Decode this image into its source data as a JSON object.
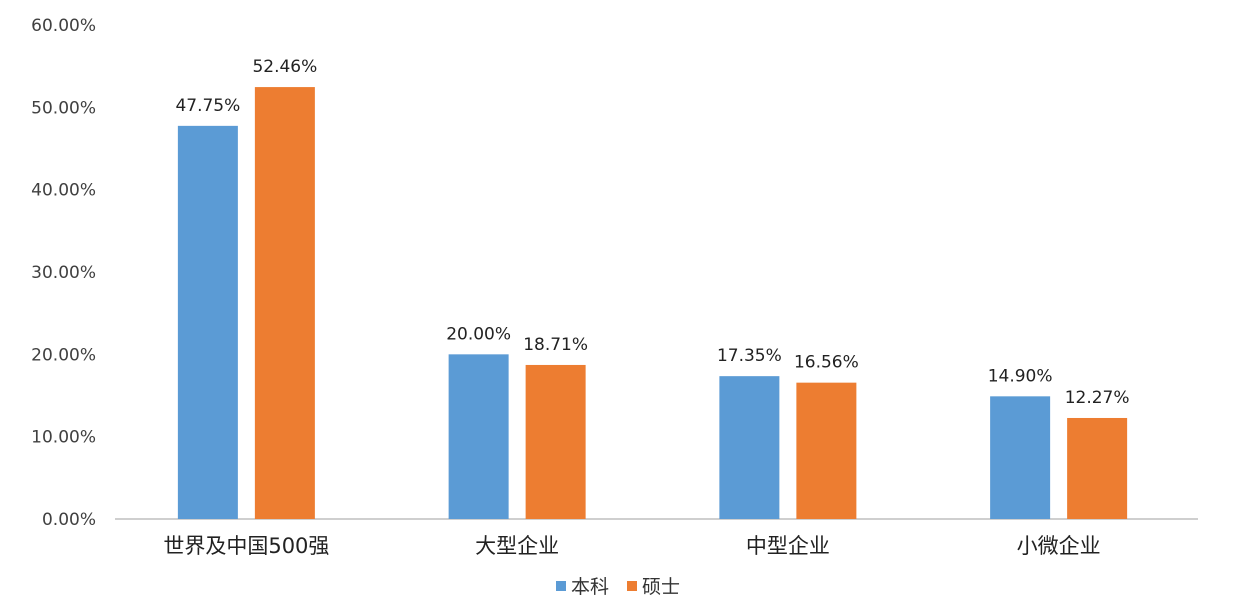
{
  "chart_data": {
    "type": "bar",
    "categories": [
      "世界及中国500强",
      "大型企业",
      "中型企业",
      "小微企业"
    ],
    "series": [
      {
        "name": "本科",
        "values": [
          47.75,
          20.0,
          17.35,
          14.9
        ],
        "labels": [
          "47.75%",
          "20.00%",
          "17.35%",
          "14.90%"
        ],
        "color": "#5B9BD5"
      },
      {
        "name": "硕士",
        "values": [
          52.46,
          18.71,
          16.56,
          12.27
        ],
        "labels": [
          "52.46%",
          "18.71%",
          "16.56%",
          "12.27%"
        ],
        "color": "#ED7D31"
      }
    ],
    "y_ticks": [
      "0.00%",
      "10.00%",
      "20.00%",
      "30.00%",
      "40.00%",
      "50.00%",
      "60.00%"
    ],
    "ylim": [
      0,
      60
    ],
    "grid": false,
    "legend_position": "bottom"
  }
}
